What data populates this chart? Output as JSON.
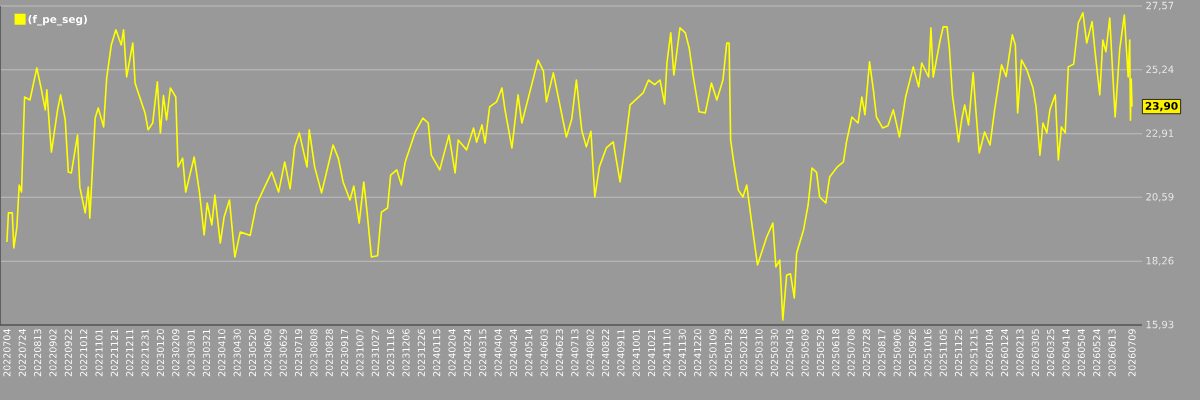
{
  "chart_data": {
    "type": "line",
    "x": [
      "2022-07-04",
      "2022-07-06",
      "2022-07-11",
      "2022-07-13",
      "2022-07-17",
      "2022-07-20",
      "2022-07-23",
      "2022-07-27",
      "2022-08-03",
      "2022-08-12",
      "2022-08-18",
      "2022-08-23",
      "2022-08-25",
      "2022-08-29",
      "2022-08-31",
      "2022-09-08",
      "2022-09-12",
      "2022-09-18",
      "2022-09-22",
      "2022-09-26",
      "2022-10-04",
      "2022-10-07",
      "2022-10-14",
      "2022-10-18",
      "2022-10-20",
      "2022-10-27",
      "2022-10-31",
      "2022-11-07",
      "2022-11-11",
      "2022-11-17",
      "2022-11-23",
      "2022-11-30",
      "2022-12-03",
      "2022-12-07",
      "2022-12-15",
      "2022-12-18",
      "2022-12-24",
      "2022-12-31",
      "2023-01-04",
      "2023-01-10",
      "2023-01-16",
      "2023-01-20",
      "2023-01-24",
      "2023-01-28",
      "2023-02-02",
      "2023-02-09",
      "2023-02-12",
      "2023-02-18",
      "2023-02-22",
      "2023-03-05",
      "2023-03-12",
      "2023-03-18",
      "2023-03-22",
      "2023-03-28",
      "2023-04-01",
      "2023-04-08",
      "2023-04-13",
      "2023-04-20",
      "2023-04-27",
      "2023-05-04",
      "2023-05-17",
      "2023-05-25",
      "2023-06-03",
      "2023-06-14",
      "2023-06-23",
      "2023-07-01",
      "2023-07-08",
      "2023-07-14",
      "2023-07-20",
      "2023-07-30",
      "2023-08-02",
      "2023-08-09",
      "2023-08-18",
      "2023-09-02",
      "2023-09-09",
      "2023-09-15",
      "2023-09-24",
      "2023-09-29",
      "2023-10-06",
      "2023-10-12",
      "2023-10-16",
      "2023-10-22",
      "2023-10-30",
      "2023-11-04",
      "2023-11-12",
      "2023-11-16",
      "2023-11-24",
      "2023-11-30",
      "2023-12-05",
      "2023-12-18",
      "2023-12-28",
      "2024-01-04",
      "2024-01-08",
      "2024-01-19",
      "2024-01-31",
      "2024-02-08",
      "2024-02-12",
      "2024-02-23",
      "2024-03-03",
      "2024-03-07",
      "2024-03-14",
      "2024-03-18",
      "2024-03-24",
      "2024-04-02",
      "2024-04-09",
      "2024-04-13",
      "2024-04-22",
      "2024-04-30",
      "2024-05-05",
      "2024-05-16",
      "2024-05-20",
      "2024-05-26",
      "2024-06-02",
      "2024-06-06",
      "2024-06-15",
      "2024-06-24",
      "2024-07-02",
      "2024-07-09",
      "2024-07-15",
      "2024-07-22",
      "2024-07-28",
      "2024-08-03",
      "2024-08-08",
      "2024-08-14",
      "2024-08-23",
      "2024-09-01",
      "2024-09-10",
      "2024-09-16",
      "2024-09-23",
      "2024-10-10",
      "2024-10-17",
      "2024-10-25",
      "2024-11-01",
      "2024-11-07",
      "2024-11-10",
      "2024-11-15",
      "2024-11-19",
      "2024-11-27",
      "2024-12-04",
      "2024-12-09",
      "2024-12-14",
      "2024-12-22",
      "2024-12-30",
      "2025-01-07",
      "2025-01-14",
      "2025-01-22",
      "2025-01-27",
      "2025-01-30",
      "2025-02-01",
      "2025-02-05",
      "2025-02-11",
      "2025-02-17",
      "2025-02-22",
      "2025-02-28",
      "2025-03-08",
      "2025-03-20",
      "2025-03-28",
      "2025-04-01",
      "2025-04-06",
      "2025-04-10",
      "2025-04-15",
      "2025-04-20",
      "2025-04-25",
      "2025-04-28",
      "2025-05-07",
      "2025-05-13",
      "2025-05-18",
      "2025-05-24",
      "2025-05-28",
      "2025-06-05",
      "2025-06-10",
      "2025-06-20",
      "2025-06-28",
      "2025-07-02",
      "2025-07-09",
      "2025-07-17",
      "2025-07-22",
      "2025-07-26",
      "2025-08-01",
      "2025-08-06",
      "2025-08-10",
      "2025-08-18",
      "2025-08-25",
      "2025-09-01",
      "2025-09-09",
      "2025-09-17",
      "2025-09-27",
      "2025-10-04",
      "2025-10-08",
      "2025-10-17",
      "2025-10-20",
      "2025-10-23",
      "2025-11-01",
      "2025-11-05",
      "2025-11-10",
      "2025-11-13",
      "2025-11-17",
      "2025-11-25",
      "2025-11-29",
      "2025-12-03",
      "2025-12-08",
      "2025-12-14",
      "2025-12-18",
      "2025-12-22",
      "2025-12-29",
      "2026-01-05",
      "2026-01-11",
      "2026-01-20",
      "2026-01-26",
      "2026-02-03",
      "2026-02-07",
      "2026-02-10",
      "2026-02-15",
      "2026-02-22",
      "2026-03-02",
      "2026-03-06",
      "2026-03-11",
      "2026-03-15",
      "2026-03-20",
      "2026-03-24",
      "2026-03-31",
      "2026-04-04",
      "2026-04-08",
      "2026-04-13",
      "2026-04-17",
      "2026-04-24",
      "2026-04-30",
      "2026-05-06",
      "2026-05-11",
      "2026-05-18",
      "2026-05-22",
      "2026-05-28",
      "2026-06-01",
      "2026-06-05",
      "2026-06-10",
      "2026-06-14",
      "2026-06-17",
      "2026-06-23",
      "2026-06-29",
      "2026-07-04",
      "2026-07-06",
      "2026-07-07",
      "2026-07-08",
      "2026-07-09"
    ],
    "series": [
      {
        "name": "(f_pe_seg)",
        "color": "#ffff00",
        "values": [
          18.96,
          20.02,
          20.02,
          18.74,
          19.5,
          21.04,
          20.78,
          24.25,
          24.14,
          25.31,
          24.51,
          23.78,
          24.51,
          22.94,
          22.24,
          23.78,
          24.33,
          23.41,
          21.51,
          21.48,
          22.86,
          20.96,
          20.02,
          20.96,
          19.83,
          23.48,
          23.85,
          23.16,
          24.94,
          26.15,
          26.7,
          26.15,
          26.7,
          24.98,
          26.22,
          24.76,
          24.25,
          23.67,
          23.05,
          23.3,
          24.8,
          22.94,
          24.3,
          23.41,
          24.58,
          24.25,
          21.7,
          22.02,
          20.78,
          22.06,
          20.75,
          19.22,
          20.38,
          19.58,
          20.67,
          18.92,
          19.87,
          20.49,
          18.41,
          19.32,
          19.2,
          20.31,
          20.86,
          21.51,
          20.78,
          21.88,
          20.9,
          22.43,
          22.94,
          21.7,
          23.05,
          21.7,
          20.75,
          22.5,
          22.0,
          21.15,
          20.49,
          21.0,
          19.65,
          21.15,
          20.13,
          18.41,
          18.46,
          20.05,
          20.2,
          21.4,
          21.59,
          21.04,
          21.88,
          22.97,
          23.48,
          23.3,
          22.13,
          21.59,
          22.86,
          21.48,
          22.68,
          22.32,
          23.12,
          22.6,
          23.23,
          22.57,
          23.89,
          24.07,
          24.58,
          23.78,
          22.39,
          24.33,
          23.3,
          24.5,
          24.94,
          25.6,
          25.2,
          24.07,
          25.13,
          23.89,
          22.79,
          23.45,
          24.87,
          23.04,
          22.43,
          23.0,
          20.6,
          21.7,
          22.39,
          22.61,
          21.15,
          22.39,
          23.96,
          24.4,
          24.87,
          24.7,
          24.87,
          24.0,
          25.49,
          26.59,
          25.05,
          26.77,
          26.59,
          26.04,
          25.05,
          23.71,
          23.67,
          24.76,
          24.14,
          24.87,
          26.22,
          26.22,
          22.68,
          21.88,
          20.86,
          20.6,
          21.04,
          19.76,
          18.12,
          19.14,
          19.65,
          18.05,
          18.3,
          16.11,
          17.75,
          17.8,
          16.92,
          18.56,
          19.4,
          20.31,
          21.66,
          21.5,
          20.6,
          20.38,
          21.33,
          21.7,
          21.88,
          22.61,
          23.52,
          23.3,
          24.25,
          23.6,
          25.53,
          24.51,
          23.52,
          23.12,
          23.2,
          23.78,
          22.79,
          24.25,
          25.35,
          24.62,
          25.49,
          24.98,
          26.77,
          24.98,
          26.33,
          26.81,
          26.81,
          26.04,
          24.33,
          22.61,
          23.41,
          23.96,
          23.23,
          25.13,
          23.6,
          22.21,
          22.97,
          22.5,
          23.78,
          25.42,
          25.0,
          26.52,
          26.15,
          23.67,
          25.6,
          25.24,
          24.58,
          23.89,
          22.13,
          23.3,
          22.94,
          23.78,
          24.33,
          21.95,
          23.16,
          22.94,
          25.35,
          25.45,
          26.95,
          27.32,
          26.22,
          27.0,
          25.86,
          24.33,
          26.33,
          25.9,
          27.13,
          25.05,
          23.52,
          26.0,
          27.24,
          24.98,
          26.33,
          23.4,
          24.9,
          23.9
        ]
      }
    ],
    "xlim": [
      "2022-06-25",
      "2026-07-22"
    ],
    "xticks": [
      {
        "value": "2022-07-04",
        "label": "20220704"
      },
      {
        "value": "2022-07-24",
        "label": "20220724"
      },
      {
        "value": "2022-08-13",
        "label": "20220813"
      },
      {
        "value": "2022-09-02",
        "label": "20220902"
      },
      {
        "value": "2022-09-22",
        "label": "20220922"
      },
      {
        "value": "2022-10-12",
        "label": "20221012"
      },
      {
        "value": "2022-11-01",
        "label": "20221101"
      },
      {
        "value": "2022-11-21",
        "label": "20221121"
      },
      {
        "value": "2022-12-11",
        "label": "20221211"
      },
      {
        "value": "2022-12-31",
        "label": "20221231"
      },
      {
        "value": "2023-01-20",
        "label": "20230120"
      },
      {
        "value": "2023-02-09",
        "label": "20230209"
      },
      {
        "value": "2023-03-01",
        "label": "20230301"
      },
      {
        "value": "2023-03-21",
        "label": "20230321"
      },
      {
        "value": "2023-04-10",
        "label": "20230410"
      },
      {
        "value": "2023-04-30",
        "label": "20230430"
      },
      {
        "value": "2023-05-20",
        "label": "20230520"
      },
      {
        "value": "2023-06-09",
        "label": "20230609"
      },
      {
        "value": "2023-06-29",
        "label": "20230629"
      },
      {
        "value": "2023-07-19",
        "label": "20230719"
      },
      {
        "value": "2023-08-08",
        "label": "20230808"
      },
      {
        "value": "2023-08-28",
        "label": "20230828"
      },
      {
        "value": "2023-09-17",
        "label": "20230917"
      },
      {
        "value": "2023-10-07",
        "label": "20231007"
      },
      {
        "value": "2023-10-27",
        "label": "20231027"
      },
      {
        "value": "2023-11-16",
        "label": "20231116"
      },
      {
        "value": "2023-12-06",
        "label": "20231206"
      },
      {
        "value": "2023-12-26",
        "label": "20231226"
      },
      {
        "value": "2024-01-15",
        "label": "20240115"
      },
      {
        "value": "2024-02-04",
        "label": "20240204"
      },
      {
        "value": "2024-02-24",
        "label": "20240224"
      },
      {
        "value": "2024-03-15",
        "label": "20240315"
      },
      {
        "value": "2024-04-04",
        "label": "20240404"
      },
      {
        "value": "2024-04-24",
        "label": "20240424"
      },
      {
        "value": "2024-05-14",
        "label": "20240514"
      },
      {
        "value": "2024-06-03",
        "label": "20240603"
      },
      {
        "value": "2024-06-23",
        "label": "20240623"
      },
      {
        "value": "2024-07-13",
        "label": "20240713"
      },
      {
        "value": "2024-08-02",
        "label": "20240802"
      },
      {
        "value": "2024-08-22",
        "label": "20240822"
      },
      {
        "value": "2024-09-11",
        "label": "20240911"
      },
      {
        "value": "2024-10-01",
        "label": "20241001"
      },
      {
        "value": "2024-10-21",
        "label": "20241021"
      },
      {
        "value": "2024-11-10",
        "label": "20241110"
      },
      {
        "value": "2024-11-30",
        "label": "20241130"
      },
      {
        "value": "2024-12-20",
        "label": "20241220"
      },
      {
        "value": "2025-01-09",
        "label": "20250109"
      },
      {
        "value": "2025-01-29",
        "label": "20250129"
      },
      {
        "value": "2025-02-18",
        "label": "20250218"
      },
      {
        "value": "2025-03-10",
        "label": "20250310"
      },
      {
        "value": "2025-03-30",
        "label": "20250330"
      },
      {
        "value": "2025-04-19",
        "label": "20250419"
      },
      {
        "value": "2025-05-09",
        "label": "20250509"
      },
      {
        "value": "2025-05-29",
        "label": "20250529"
      },
      {
        "value": "2025-06-18",
        "label": "20250618"
      },
      {
        "value": "2025-07-08",
        "label": "20250708"
      },
      {
        "value": "2025-07-28",
        "label": "20250728"
      },
      {
        "value": "2025-08-17",
        "label": "20250817"
      },
      {
        "value": "2025-09-06",
        "label": "20250906"
      },
      {
        "value": "2025-09-26",
        "label": "20250926"
      },
      {
        "value": "2025-10-16",
        "label": "20251016"
      },
      {
        "value": "2025-11-05",
        "label": "20251105"
      },
      {
        "value": "2025-11-25",
        "label": "20251125"
      },
      {
        "value": "2025-12-15",
        "label": "20251215"
      },
      {
        "value": "2026-01-04",
        "label": "20260104"
      },
      {
        "value": "2026-01-24",
        "label": "20260124"
      },
      {
        "value": "2026-02-13",
        "label": "20260213"
      },
      {
        "value": "2026-03-05",
        "label": "20260305"
      },
      {
        "value": "2026-03-25",
        "label": "20260325"
      },
      {
        "value": "2026-04-14",
        "label": "20260414"
      },
      {
        "value": "2026-05-04",
        "label": "20260504"
      },
      {
        "value": "2026-05-24",
        "label": "20260524"
      },
      {
        "value": "2026-06-13",
        "label": "20260613"
      },
      {
        "value": "2026-07-09",
        "label": "20260709"
      }
    ],
    "ylim": [
      15.93,
      27.57
    ],
    "yticks": [
      {
        "value": 15.93,
        "label": "15,93"
      },
      {
        "value": 18.26,
        "label": "18,26"
      },
      {
        "value": 20.59,
        "label": "20,59"
      },
      {
        "value": 22.91,
        "label": "22,91"
      },
      {
        "value": 25.24,
        "label": "25,24"
      },
      {
        "value": 27.57,
        "label": "27,57"
      }
    ],
    "grid": "y",
    "legend": "top left",
    "annotations": [
      {
        "text": "23,90",
        "x": "2026-07-09",
        "y": 23.9
      }
    ]
  }
}
